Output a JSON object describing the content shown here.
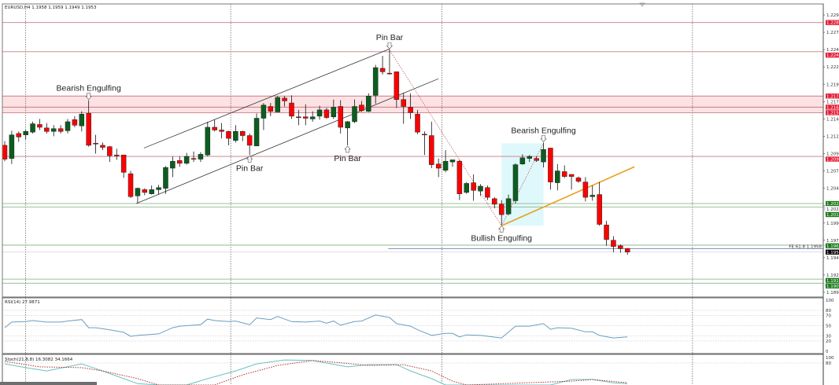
{
  "header": {
    "symbol": "EURUSD,H4",
    "ohlc": "1.1958 1.1959 1.1949 1.1953"
  },
  "colors": {
    "bull": "#0b5e1f",
    "bear": "#ff0000",
    "resistance": "#c97a84",
    "resistance_zone": "#fde2e4",
    "support": "#8fb98f",
    "support_label": "#1f7a1f",
    "resistance_label": "#e0203a",
    "pattern_box": "#dff8fb",
    "orange_trend": "#e8a020",
    "fib_line": "#7a86b8",
    "rsi_line": "#6a9ec0",
    "stoch_main": "#6cc0c0",
    "stoch_signal": "#b03030"
  },
  "chart_data": [
    {
      "type": "candlestick",
      "title": "EURUSD,H4",
      "x_unit": "bar",
      "ylim": [
        1.1895,
        1.2295
      ],
      "y_ticks": [
        "1.2295",
        "1.2270",
        "1.2245",
        "1.2220",
        "1.2195",
        "1.2170",
        "1.2145",
        "1.2120",
        "1.2095",
        "1.2070",
        "1.2045",
        "1.2020",
        "1.1995",
        "1.1970",
        "1.1945",
        "1.1920",
        "1.1895"
      ],
      "grid": false,
      "candles_ohlc": [
        [
          1.2107,
          1.2113,
          1.2084,
          1.2087
        ],
        [
          1.2088,
          1.2128,
          1.208,
          1.2122
        ],
        [
          1.2124,
          1.2127,
          1.2112,
          1.2119
        ],
        [
          1.2122,
          1.2129,
          1.2115,
          1.2127
        ],
        [
          1.2126,
          1.2141,
          1.2124,
          1.2138
        ],
        [
          1.2137,
          1.2145,
          1.2129,
          1.2133
        ],
        [
          1.2132,
          1.2139,
          1.2124,
          1.2127
        ],
        [
          1.2127,
          1.2136,
          1.212,
          1.2131
        ],
        [
          1.2131,
          1.2136,
          1.2124,
          1.2127
        ],
        [
          1.2128,
          1.2145,
          1.2124,
          1.2141
        ],
        [
          1.2144,
          1.2149,
          1.2133,
          1.2136
        ],
        [
          1.2135,
          1.2156,
          1.2127,
          1.2152
        ],
        [
          1.2153,
          1.2172,
          1.2105,
          1.2107
        ],
        [
          1.211,
          1.2122,
          1.2095,
          1.211
        ],
        [
          1.2107,
          1.2111,
          1.21,
          1.2104
        ],
        [
          1.2105,
          1.2106,
          1.2083,
          1.2092
        ],
        [
          1.2093,
          1.2102,
          1.2086,
          1.2093
        ],
        [
          1.2093,
          1.2093,
          1.206,
          1.2068
        ],
        [
          1.2066,
          1.207,
          1.2031,
          1.2033
        ],
        [
          1.2034,
          1.2046,
          1.2024,
          1.2045
        ],
        [
          1.2043,
          1.2045,
          1.2035,
          1.2039
        ],
        [
          1.2037,
          1.2049,
          1.2036,
          1.2043
        ],
        [
          1.2043,
          1.205,
          1.2036,
          1.2046
        ],
        [
          1.2045,
          1.2077,
          1.2037,
          1.2075
        ],
        [
          1.2074,
          1.2091,
          1.2061,
          1.2084
        ],
        [
          1.2085,
          1.2091,
          1.2076,
          1.2081
        ],
        [
          1.2081,
          1.2096,
          1.2079,
          1.2091
        ],
        [
          1.2088,
          1.2098,
          1.2083,
          1.2088
        ],
        [
          1.2087,
          1.2097,
          1.2083,
          1.2094
        ],
        [
          1.2093,
          1.2141,
          1.2091,
          1.2133
        ],
        [
          1.2133,
          1.2144,
          1.2127,
          1.2129
        ],
        [
          1.2129,
          1.2139,
          1.2117,
          1.2127
        ],
        [
          1.2127,
          1.2128,
          1.2107,
          1.2117
        ],
        [
          1.2114,
          1.2136,
          1.2111,
          1.2127
        ],
        [
          1.2127,
          1.2128,
          1.2113,
          1.2121
        ],
        [
          1.2121,
          1.2124,
          1.2093,
          1.2107
        ],
        [
          1.2106,
          1.2153,
          1.2106,
          1.2146
        ],
        [
          1.2146,
          1.2168,
          1.2129,
          1.2165
        ],
        [
          1.2163,
          1.2168,
          1.2149,
          1.2156
        ],
        [
          1.2155,
          1.2178,
          1.2155,
          1.2176
        ],
        [
          1.2175,
          1.2178,
          1.2163,
          1.2171
        ],
        [
          1.2168,
          1.2179,
          1.2145,
          1.2149
        ],
        [
          1.2148,
          1.2158,
          1.2136,
          1.2148
        ],
        [
          1.2148,
          1.2166,
          1.2136,
          1.2146
        ],
        [
          1.2145,
          1.2156,
          1.2141,
          1.2148
        ],
        [
          1.2149,
          1.2164,
          1.2144,
          1.2158
        ],
        [
          1.2158,
          1.2161,
          1.2145,
          1.2147
        ],
        [
          1.2148,
          1.2173,
          1.2145,
          1.2162
        ],
        [
          1.2163,
          1.2172,
          1.2124,
          1.2133
        ],
        [
          1.2132,
          1.2142,
          1.2107,
          1.2141
        ],
        [
          1.2141,
          1.2173,
          1.2139,
          1.2163
        ],
        [
          1.2165,
          1.2171,
          1.2155,
          1.2157
        ],
        [
          1.2156,
          1.2182,
          1.2155,
          1.2178
        ],
        [
          1.2179,
          1.2223,
          1.2167,
          1.2219
        ],
        [
          1.2218,
          1.2236,
          1.2209,
          1.2213
        ],
        [
          1.2211,
          1.2245,
          1.2209,
          1.2211
        ],
        [
          1.2213,
          1.2213,
          1.2161,
          1.2173
        ],
        [
          1.2173,
          1.2183,
          1.2138,
          1.2163
        ],
        [
          1.2162,
          1.2182,
          1.2145,
          1.2154
        ],
        [
          1.2152,
          1.2158,
          1.2123,
          1.2126
        ],
        [
          1.2123,
          1.2127,
          1.2093,
          1.2123
        ],
        [
          1.2121,
          1.2141,
          1.2074,
          1.2079
        ],
        [
          1.208,
          1.2088,
          1.2061,
          1.2074
        ],
        [
          1.2071,
          1.21,
          1.2068,
          1.2084
        ],
        [
          1.2083,
          1.2086,
          1.2076,
          1.2086
        ],
        [
          1.2084,
          1.2086,
          1.2028,
          1.2037
        ],
        [
          1.2039,
          1.2054,
          1.2037,
          1.2052
        ],
        [
          1.2053,
          1.2065,
          1.2027,
          1.2042
        ],
        [
          1.2041,
          1.2051,
          1.2034,
          1.2048
        ],
        [
          1.2046,
          1.2049,
          1.2028,
          1.2032
        ],
        [
          1.203,
          1.2032,
          1.2016,
          1.2022
        ],
        [
          1.2022,
          1.2028,
          1.1992,
          1.2007
        ],
        [
          1.2008,
          1.2036,
          1.2006,
          1.203
        ],
        [
          1.2027,
          1.2081,
          1.2023,
          1.2079
        ],
        [
          1.208,
          1.2094,
          1.2079,
          1.2089
        ],
        [
          1.2088,
          1.2093,
          1.2083,
          1.2091
        ],
        [
          1.2088,
          1.2091,
          1.2083,
          1.2085
        ],
        [
          1.2083,
          1.2111,
          1.2075,
          1.2101
        ],
        [
          1.2103,
          1.2103,
          1.2043,
          1.2054
        ],
        [
          1.2053,
          1.208,
          1.2042,
          1.207
        ],
        [
          1.2069,
          1.2078,
          1.206,
          1.2062
        ],
        [
          1.2065,
          1.2065,
          1.2043,
          1.2062
        ],
        [
          1.206,
          1.2062,
          1.2053,
          1.2055
        ],
        [
          1.2054,
          1.2061,
          1.2026,
          1.2032
        ],
        [
          1.2033,
          1.2049,
          1.2027,
          1.2035
        ],
        [
          1.2036,
          1.2054,
          1.1991,
          1.1993
        ],
        [
          1.1992,
          1.1998,
          1.1962,
          1.1971
        ],
        [
          1.197,
          1.1976,
          1.1953,
          1.1961
        ],
        [
          1.1962,
          1.1964,
          1.1952,
          1.1958
        ],
        [
          1.1958,
          1.1959,
          1.1949,
          1.1953
        ]
      ],
      "resistance_levels": [
        "1.2284",
        "1.2242",
        "1.2178",
        "1.2162",
        "1.2154",
        "1.2091"
      ],
      "resistance_zone": [
        1.2154,
        1.2178
      ],
      "support_levels": [
        "1.2023",
        "1.2018",
        "1.1963",
        "1.1914",
        "1.1908"
      ],
      "current_price": "1.1953",
      "fib_level": {
        "label": "FE 61.8 1.1958",
        "price": 1.1958,
        "from_bar": 55.8
      },
      "vertical_separators_bar": [
        4,
        33.3,
        63.5,
        99.3
      ],
      "trendlines": [
        {
          "kind": "channel-upper",
          "from": [
            20.9,
            1.2103
          ],
          "to": [
            56,
            1.2246
          ]
        },
        {
          "kind": "channel-lower",
          "from": [
            19.8,
            1.2023
          ],
          "to": [
            63,
            1.2203
          ]
        },
        {
          "kind": "dotted-red",
          "from": [
            55.9,
            1.2246
          ],
          "to": [
            72,
            1.1991
          ]
        },
        {
          "kind": "dotted-red",
          "from": [
            72,
            1.1991
          ],
          "to": [
            78,
            1.211
          ]
        },
        {
          "kind": "orange",
          "from": [
            72,
            1.1991
          ],
          "to": [
            91,
            1.2076
          ]
        }
      ],
      "pattern_box": {
        "bars": [
          72,
          78
        ],
        "prices": [
          1.1991,
          1.211
        ]
      },
      "annotations": [
        {
          "text": "Bearish Engulfing",
          "bar": 13,
          "position": "above"
        },
        {
          "text": "Pin Bar",
          "bar": 36,
          "position": "below"
        },
        {
          "text": "Pin Bar",
          "bar": 50,
          "position": "below"
        },
        {
          "text": "Pin Bar",
          "bar": 56,
          "position": "above"
        },
        {
          "text": "Bullish Engulfing",
          "bar": 72,
          "position": "below"
        },
        {
          "text": "Bearish Engulfing",
          "bar": 78,
          "position": "above"
        }
      ]
    },
    {
      "type": "line",
      "title": "RSI(14) 27.9871",
      "ylim": [
        0,
        100
      ],
      "y_ticks": [
        "100",
        "80",
        "70",
        "50",
        "30",
        "20",
        "0"
      ],
      "levels": [
        80,
        70,
        50,
        30,
        20
      ],
      "series": [
        {
          "points": [
            [
              1,
              46
            ],
            [
              2,
              57
            ],
            [
              4,
              58
            ],
            [
              5,
              60
            ],
            [
              7,
              57
            ],
            [
              9,
              57
            ],
            [
              10,
              59
            ],
            [
              12,
              62
            ],
            [
              13,
              46
            ],
            [
              14,
              46
            ],
            [
              16,
              42
            ],
            [
              18,
              37
            ],
            [
              19,
              29
            ],
            [
              20,
              31
            ],
            [
              23,
              34
            ],
            [
              25,
              46
            ],
            [
              26,
              49
            ],
            [
              29,
              52
            ],
            [
              30,
              63
            ],
            [
              31,
              60
            ],
            [
              33,
              58
            ],
            [
              34,
              59
            ],
            [
              36,
              52
            ],
            [
              37,
              65
            ],
            [
              39,
              62
            ],
            [
              40,
              68
            ],
            [
              42,
              58
            ],
            [
              44,
              57
            ],
            [
              46,
              59
            ],
            [
              47,
              55
            ],
            [
              48,
              59
            ],
            [
              49,
              51
            ],
            [
              51,
              58
            ],
            [
              52,
              59
            ],
            [
              54,
              71
            ],
            [
              56,
              66
            ],
            [
              57,
              54
            ],
            [
              59,
              49
            ],
            [
              60,
              42
            ],
            [
              62,
              31
            ],
            [
              64,
              35
            ],
            [
              65,
              35
            ],
            [
              66,
              28
            ],
            [
              67,
              32
            ],
            [
              69,
              31
            ],
            [
              72,
              26
            ],
            [
              74,
              49
            ],
            [
              76,
              49
            ],
            [
              78,
              54
            ],
            [
              79,
              43
            ],
            [
              80,
              46
            ],
            [
              82,
              45
            ],
            [
              84,
              38
            ],
            [
              85,
              38
            ],
            [
              86,
              31
            ],
            [
              88,
              26
            ],
            [
              90,
              28
            ]
          ]
        }
      ]
    },
    {
      "type": "line",
      "title": "Stoch(21,8,8) 16.3082 34.1664",
      "ylim": [
        0,
        100
      ],
      "y_ticks": [
        "100",
        "80"
      ],
      "levels": [
        80
      ],
      "series": [
        {
          "style": "solid",
          "points": [
            [
              1,
              77
            ],
            [
              4,
              63
            ],
            [
              7,
              51
            ],
            [
              12,
              77
            ],
            [
              15,
              51
            ],
            [
              18,
              23
            ],
            [
              20,
              5
            ],
            [
              23,
              0
            ],
            [
              27,
              0
            ],
            [
              30,
              23
            ],
            [
              34,
              51
            ],
            [
              37,
              77
            ],
            [
              41,
              91
            ],
            [
              45,
              89
            ],
            [
              50,
              66
            ],
            [
              53,
              74
            ],
            [
              57,
              74
            ],
            [
              59,
              51
            ],
            [
              62,
              23
            ],
            [
              64,
              0
            ],
            [
              79,
              0
            ],
            [
              82,
              20
            ],
            [
              85,
              20
            ],
            [
              88,
              8
            ],
            [
              90,
              5
            ]
          ]
        },
        {
          "style": "dotted",
          "points": [
            [
              1,
              86
            ],
            [
              6,
              66
            ],
            [
              12,
              63
            ],
            [
              15,
              51
            ],
            [
              20,
              23
            ],
            [
              23,
              0
            ],
            [
              31,
              0
            ],
            [
              35,
              37
            ],
            [
              40,
              71
            ],
            [
              45,
              89
            ],
            [
              48,
              83
            ],
            [
              53,
              71
            ],
            [
              58,
              74
            ],
            [
              62,
              51
            ],
            [
              65,
              14
            ],
            [
              67,
              0
            ],
            [
              82,
              14
            ],
            [
              85,
              20
            ],
            [
              90,
              8
            ]
          ]
        }
      ]
    }
  ]
}
